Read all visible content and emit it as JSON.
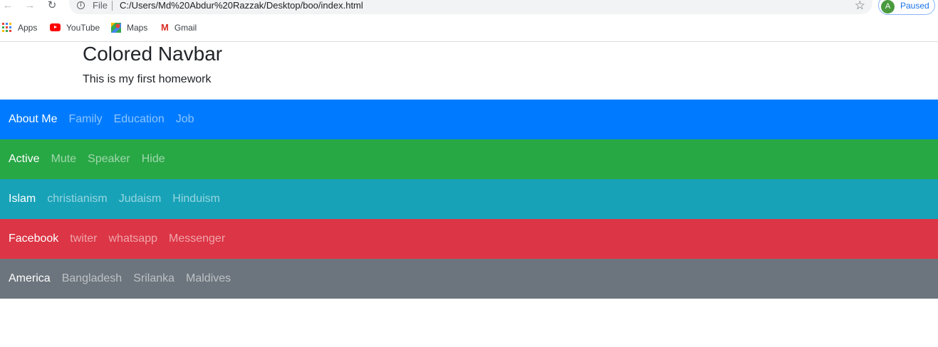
{
  "browser": {
    "omnibox": {
      "scheme_label": "File",
      "url": "C:/Users/Md%20Abdur%20Razzak/Desktop/boo/index.html"
    },
    "profile": {
      "initial": "A",
      "status": "Paused",
      "color": "#4a9a3e"
    },
    "bookmarks": [
      {
        "label": "Apps",
        "icon": "apps-grid-icon"
      },
      {
        "label": "YouTube",
        "icon": "youtube-icon"
      },
      {
        "label": "Maps",
        "icon": "maps-icon"
      },
      {
        "label": "Gmail",
        "icon": "gmail-icon"
      }
    ]
  },
  "page": {
    "title": "Colored Navbar",
    "subtitle": "This is my first homework"
  },
  "navbars": [
    {
      "color": "#007bff",
      "brand": "About Me",
      "links": [
        "Family",
        "Education",
        "Job"
      ]
    },
    {
      "color": "#28a745",
      "brand": "Active",
      "links": [
        "Mute",
        "Speaker",
        "Hide"
      ]
    },
    {
      "color": "#17a2b8",
      "brand": "Islam",
      "links": [
        "christianism",
        "Judaism",
        "Hinduism"
      ]
    },
    {
      "color": "#dc3545",
      "brand": "Facebook",
      "links": [
        "twiter",
        "whatsapp",
        "Messenger"
      ]
    },
    {
      "color": "#6c757d",
      "brand": "America",
      "links": [
        "Bangladesh",
        "Srilanka",
        "Maldives"
      ]
    }
  ]
}
